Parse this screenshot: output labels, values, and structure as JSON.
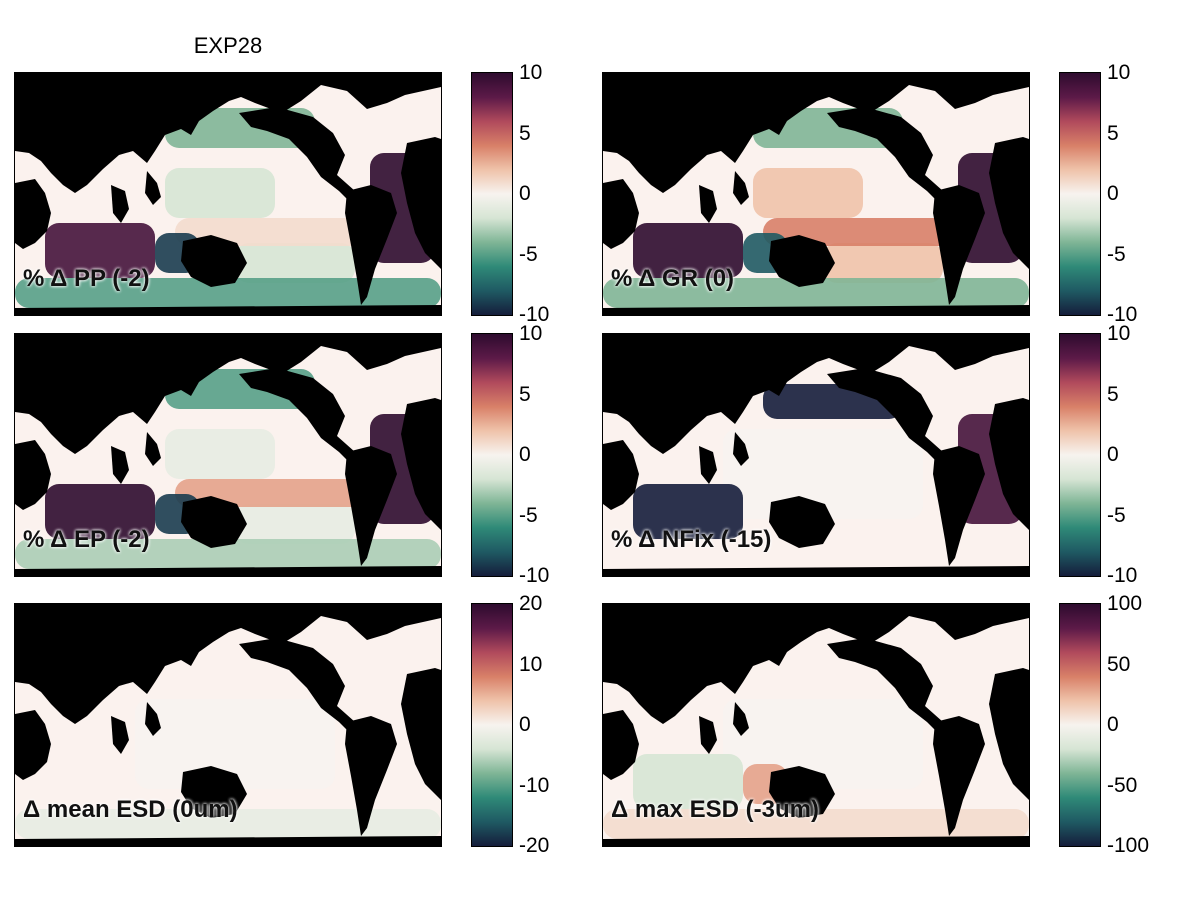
{
  "figure_title": "EXP28",
  "colors": {
    "land": "#000000",
    "neutral_ocean": "#fbf2ee",
    "colormap": [
      "#151d3b",
      "#1f5a63",
      "#2f8a78",
      "#7fb596",
      "#d6e5d4",
      "#f7f3ef",
      "#efc3aa",
      "#d88068",
      "#b04a5c",
      "#5c1a48",
      "#2e0b2e"
    ]
  },
  "chart_data": [
    {
      "type": "heatmap",
      "label": "% Δ PP (-2)",
      "clim": [
        -10,
        10
      ],
      "colorbar_ticks": [
        "10",
        "5",
        "0",
        "-5",
        "-10"
      ],
      "regions": [
        {
          "where": "subtropical Pacific",
          "value": -2
        },
        {
          "where": "equatorial Pacific",
          "value": 1
        },
        {
          "where": "Indian Ocean",
          "value": 9
        },
        {
          "where": "Maritime Continent",
          "value": -9
        },
        {
          "where": "tropical Atlantic",
          "value": 10
        },
        {
          "where": "North Pacific",
          "value": -4
        },
        {
          "where": "Southern Ocean",
          "value": -5
        }
      ]
    },
    {
      "type": "heatmap",
      "label": "% Δ GR (0)",
      "clim": [
        -10,
        10
      ],
      "colorbar_ticks": [
        "10",
        "5",
        "0",
        "-5",
        "-10"
      ],
      "regions": [
        {
          "where": "subtropical Pacific",
          "value": 2
        },
        {
          "where": "equatorial Pacific",
          "value": 4
        },
        {
          "where": "Indian Ocean",
          "value": 10
        },
        {
          "where": "Maritime Continent",
          "value": -8
        },
        {
          "where": "tropical Atlantic",
          "value": 10
        },
        {
          "where": "North Pacific",
          "value": -4
        },
        {
          "where": "Southern Ocean",
          "value": -4
        }
      ]
    },
    {
      "type": "heatmap",
      "label": "% Δ EP (-2)",
      "clim": [
        -10,
        10
      ],
      "colorbar_ticks": [
        "10",
        "5",
        "0",
        "-5",
        "-10"
      ],
      "regions": [
        {
          "where": "subtropical Pacific",
          "value": -1
        },
        {
          "where": "equatorial Pacific",
          "value": 3
        },
        {
          "where": "Indian Ocean",
          "value": 10
        },
        {
          "where": "Maritime Continent",
          "value": -9
        },
        {
          "where": "tropical Atlantic",
          "value": 10
        },
        {
          "where": "North Pacific",
          "value": -5
        },
        {
          "where": "Southern Ocean",
          "value": -3
        }
      ]
    },
    {
      "type": "heatmap",
      "label": "% Δ NFix (-15)",
      "clim": [
        -10,
        10
      ],
      "colorbar_ticks": [
        "10",
        "5",
        "0",
        "-5",
        "-10"
      ],
      "regions": [
        {
          "where": "open ocean",
          "value": 0
        },
        {
          "where": "western tropical Pacific",
          "value": -10
        },
        {
          "where": "Indian Ocean",
          "value": -10
        },
        {
          "where": "tropical Atlantic",
          "value": 9
        }
      ]
    },
    {
      "type": "heatmap",
      "label": "Δ mean ESD (0um)",
      "clim": [
        -20,
        20
      ],
      "colorbar_ticks": [
        "20",
        "10",
        "0",
        "-10",
        "-20"
      ],
      "regions": [
        {
          "where": "open ocean",
          "value": 0
        },
        {
          "where": "Southern Ocean",
          "value": -2
        }
      ]
    },
    {
      "type": "heatmap",
      "label": "Δ max ESD (-3um)",
      "clim": [
        -100,
        100
      ],
      "colorbar_ticks": [
        "100",
        "50",
        "0",
        "-50",
        "-100"
      ],
      "regions": [
        {
          "where": "open ocean",
          "value": 0
        },
        {
          "where": "Indian Ocean",
          "value": -20
        },
        {
          "where": "Maritime Continent",
          "value": 30
        },
        {
          "where": "Southern Ocean",
          "value": 10
        }
      ]
    }
  ]
}
